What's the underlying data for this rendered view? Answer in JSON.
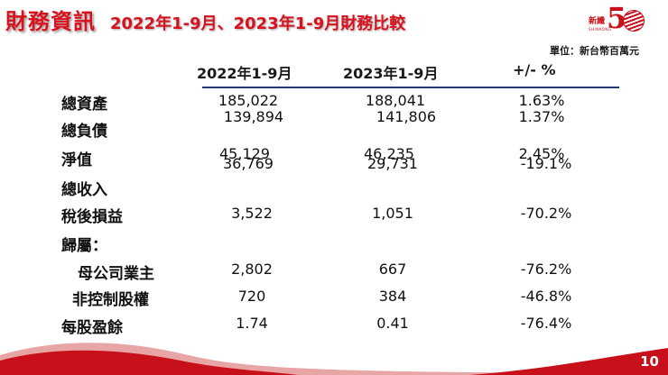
{
  "header": {
    "title": "財務資訊",
    "subtitle": "2022年1-9月、2023年1-9月財務比較",
    "unit": "單位：新台幣百萬元"
  },
  "logo": {
    "chars": "新纖",
    "number": "5",
    "tagline": "SHINKONG"
  },
  "table": {
    "columns": [
      "2022年1-9月",
      "2023年1-9月",
      "+/- %"
    ],
    "rows": [
      {
        "label": "總資產",
        "c2022": "185,022",
        "c2023": "188,041",
        "change": "1.63%"
      },
      {
        "label": "總負債",
        "c2022": "139,894",
        "c2023": "141,806",
        "change": "1.37%"
      },
      {
        "label": "淨值",
        "c2022": "45,129",
        "c2023": "46,235",
        "change": "2.45%"
      },
      {
        "label": "總收入",
        "c2022": "36,769",
        "c2023": "29,731",
        "change": "-19.1%"
      },
      {
        "label": "稅後損益",
        "c2022": "3,522",
        "c2023": "1,051",
        "change": "-70.2%"
      },
      {
        "label": "歸屬：",
        "c2022": "",
        "c2023": "",
        "change": ""
      },
      {
        "label": "母公司業主",
        "c2022": "2,802",
        "c2023": "667",
        "change": "-76.2%"
      },
      {
        "label": "非控制股權",
        "c2022": "720",
        "c2023": "384",
        "change": "-46.8%"
      },
      {
        "label": "每股盈餘",
        "c2022": "1.74",
        "c2023": "0.41",
        "change": "-76.4%"
      }
    ]
  },
  "footer": {
    "page_number": "10",
    "accent_color": "#c8101b"
  }
}
